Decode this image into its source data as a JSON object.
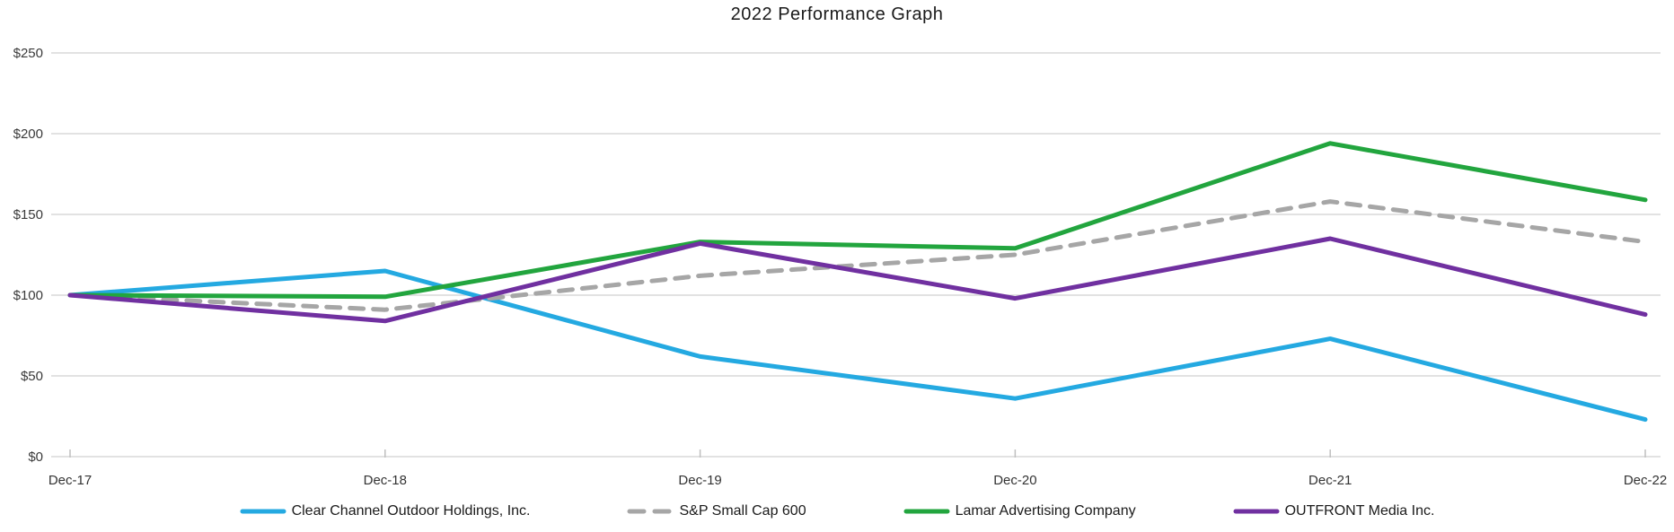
{
  "title": "2022 Performance Graph",
  "colors": {
    "gridline": "#d9d9d9",
    "axis_tick": "#bfbfbf",
    "clear_channel": "#24a9e1",
    "sp_small_cap": "#a6a6a6",
    "lamar": "#22a53e",
    "outfront": "#7030a0"
  },
  "chart_data": {
    "type": "line",
    "title": "2022 Performance Graph",
    "categories": [
      "Dec-17",
      "Dec-18",
      "Dec-19",
      "Dec-20",
      "Dec-21",
      "Dec-22"
    ],
    "series": [
      {
        "name": "Clear Channel Outdoor Holdings, Inc.",
        "color": "#24a9e1",
        "style": "solid",
        "values": [
          100,
          115,
          62,
          36,
          73,
          23
        ]
      },
      {
        "name": "S&P Small Cap 600",
        "color": "#a6a6a6",
        "style": "dashed",
        "values": [
          100,
          91,
          112,
          125,
          158,
          133
        ]
      },
      {
        "name": "Lamar Advertising Company",
        "color": "#22a53e",
        "style": "solid",
        "values": [
          100,
          99,
          133,
          129,
          194,
          159
        ]
      },
      {
        "name": "OUTFRONT Media Inc.",
        "color": "#7030a0",
        "style": "solid",
        "values": [
          100,
          84,
          132,
          98,
          135,
          88
        ]
      }
    ],
    "y_ticks": [
      "$0",
      "$50",
      "$100",
      "$150",
      "$200",
      "$250"
    ],
    "ylim": [
      0,
      250
    ],
    "y_tick_step": 50,
    "grid": "horizontal",
    "legend_position": "bottom"
  }
}
